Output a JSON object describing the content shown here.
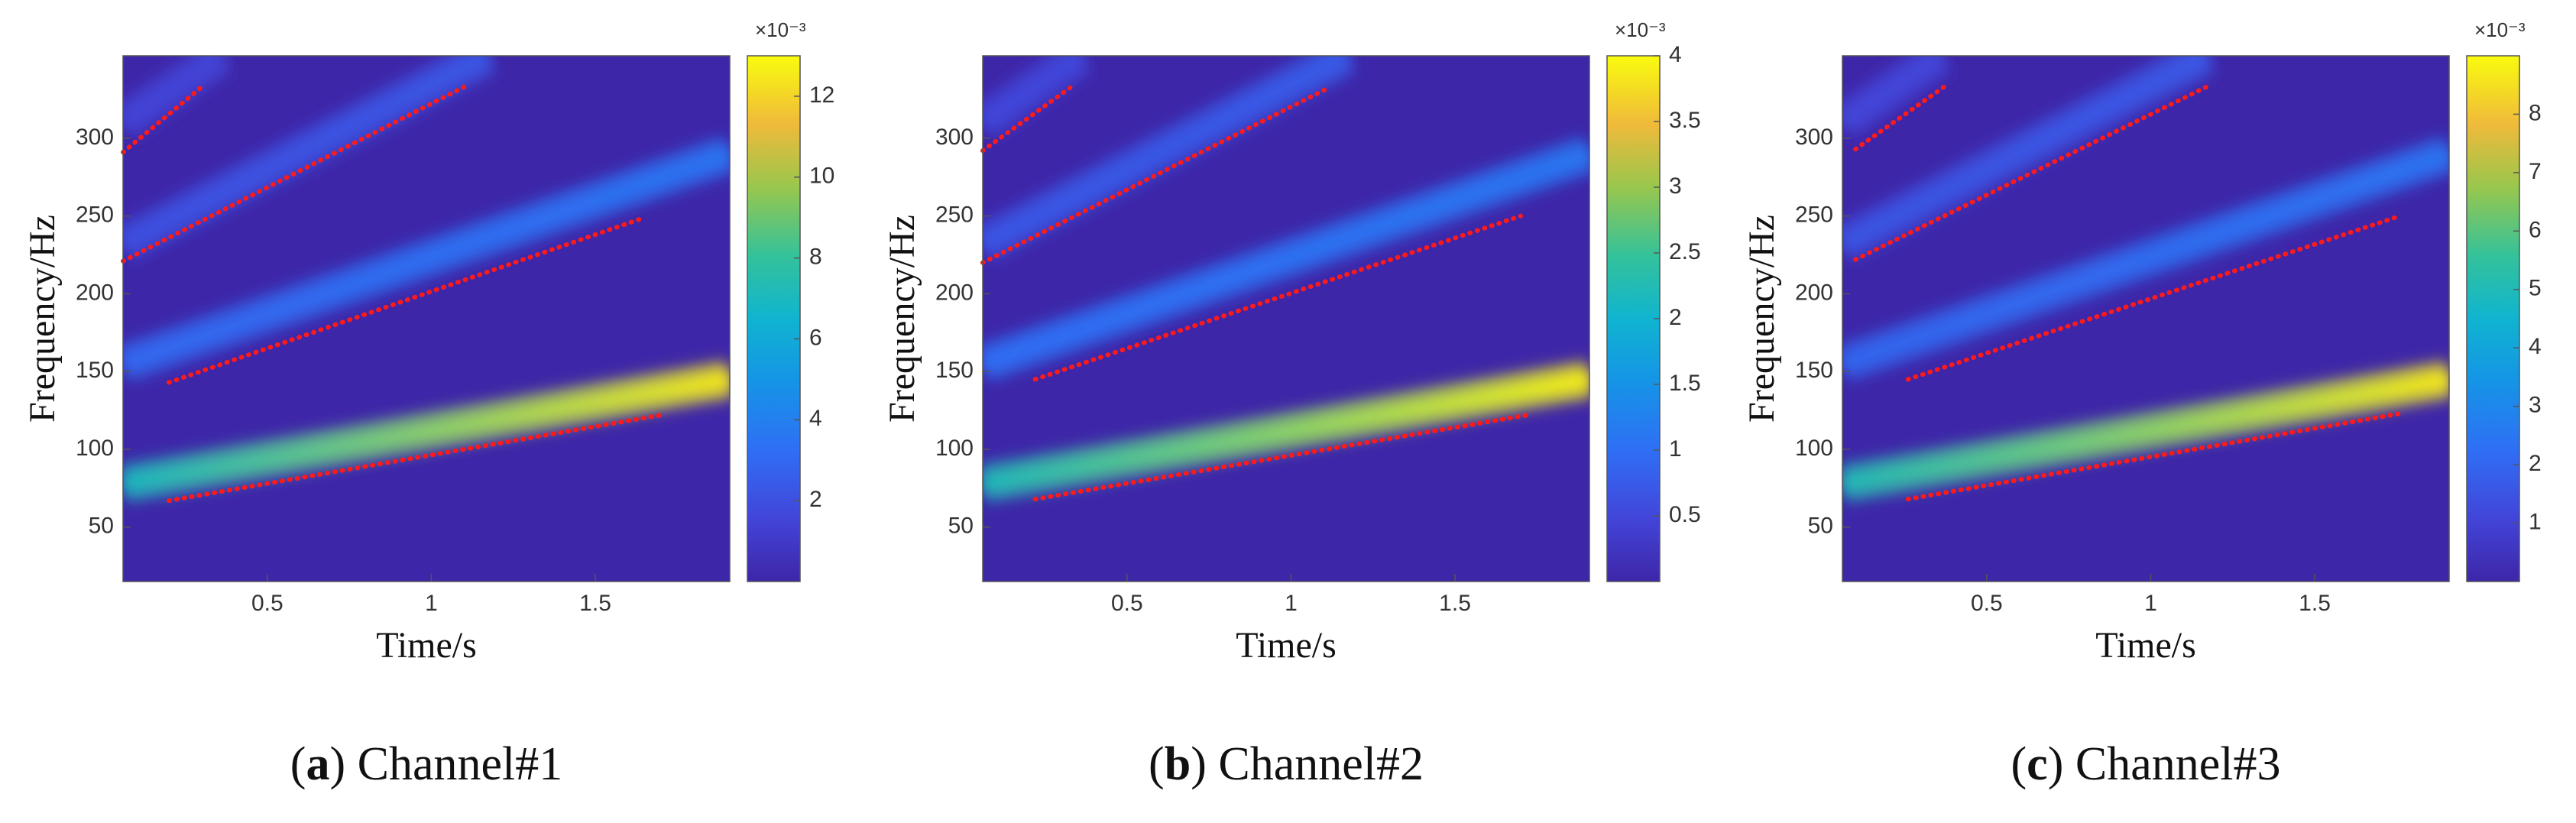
{
  "chart_data": [
    {
      "type": "heatmap",
      "xlabel": "Time/s",
      "ylabel": "Frequency/Hz",
      "caption": [
        "(",
        "a",
        ") Channel#1"
      ],
      "xlim": [
        0.06,
        1.91
      ],
      "ylim": [
        15,
        353
      ],
      "xticks": [
        0.5,
        1,
        1.5
      ],
      "yticks": [
        50,
        100,
        150,
        200,
        250,
        300
      ],
      "clim": [
        0,
        13
      ],
      "cticks": [
        2,
        4,
        6,
        8,
        10,
        12
      ],
      "clabel": "×10⁻³",
      "series": [
        {
          "x": [
            0.06,
            1.91
          ],
          "values": [
            78,
            145
          ],
          "levels": [
            7,
            12.5
          ]
        },
        {
          "x": [
            0.06,
            1.91
          ],
          "values": [
            155,
            290
          ],
          "levels": [
            3,
            3.5
          ]
        },
        {
          "x": [
            0.06,
            1.17
          ],
          "values": [
            232,
            353
          ],
          "levels": [
            2,
            2.3
          ]
        },
        {
          "x": [
            0.06,
            0.36
          ],
          "values": [
            310,
            353
          ],
          "levels": [
            1.5,
            1.5
          ]
        },
        {
          "x": [
            0.2,
            1.7
          ],
          "values": [
            67,
            122
          ],
          "color": "#ff1a1a",
          "style": "dotted"
        },
        {
          "x": [
            0.2,
            1.65
          ],
          "values": [
            143,
            249
          ],
          "color": "#ff1a1a",
          "style": "dotted"
        },
        {
          "x": [
            0.06,
            1.1
          ],
          "values": [
            221,
            333
          ],
          "color": "#ff1a1a",
          "style": "dotted"
        },
        {
          "x": [
            0.06,
            0.3
          ],
          "values": [
            291,
            333
          ],
          "color": "#ff1a1a",
          "style": "dotted"
        }
      ]
    },
    {
      "type": "heatmap",
      "xlabel": "Time/s",
      "ylabel": "Frequency/Hz",
      "caption": [
        "(",
        "b",
        ") Channel#2"
      ],
      "xlim": [
        0.06,
        1.91
      ],
      "ylim": [
        15,
        353
      ],
      "xticks": [
        0.5,
        1,
        1.5
      ],
      "yticks": [
        50,
        100,
        150,
        200,
        250,
        300
      ],
      "clim": [
        0,
        4
      ],
      "cticks": [
        0.5,
        1,
        1.5,
        2,
        2.5,
        3,
        3.5,
        4
      ],
      "clabel": "×10⁻³",
      "series": [
        {
          "x": [
            0.06,
            1.91
          ],
          "values": [
            78,
            145
          ],
          "levels": [
            2.2,
            3.9
          ]
        },
        {
          "x": [
            0.06,
            1.91
          ],
          "values": [
            155,
            290
          ],
          "levels": [
            1,
            1.1
          ]
        },
        {
          "x": [
            0.06,
            1.17
          ],
          "values": [
            232,
            353
          ],
          "levels": [
            0.7,
            0.75
          ]
        },
        {
          "x": [
            0.06,
            0.36
          ],
          "values": [
            310,
            353
          ],
          "levels": [
            0.5,
            0.5
          ]
        },
        {
          "x": [
            0.22,
            1.72
          ],
          "values": [
            68,
            122
          ],
          "color": "#ff1a1a",
          "style": "dotted"
        },
        {
          "x": [
            0.22,
            1.7
          ],
          "values": [
            145,
            250
          ],
          "color": "#ff1a1a",
          "style": "dotted"
        },
        {
          "x": [
            0.06,
            1.12
          ],
          "values": [
            220,
            333
          ],
          "color": "#ff1a1a",
          "style": "dotted"
        },
        {
          "x": [
            0.06,
            0.33
          ],
          "values": [
            292,
            333
          ],
          "color": "#ff1a1a",
          "style": "dotted"
        }
      ]
    },
    {
      "type": "heatmap",
      "xlabel": "Time/s",
      "ylabel": "Frequency/Hz",
      "caption": [
        "(",
        "c",
        ") Channel#3"
      ],
      "xlim": [
        0.06,
        1.91
      ],
      "ylim": [
        15,
        353
      ],
      "xticks": [
        0.5,
        1,
        1.5
      ],
      "yticks": [
        50,
        100,
        150,
        200,
        250,
        300
      ],
      "clim": [
        0,
        9
      ],
      "cticks": [
        1,
        2,
        3,
        4,
        5,
        6,
        7,
        8
      ],
      "clabel": "×10⁻³",
      "series": [
        {
          "x": [
            0.06,
            1.91
          ],
          "values": [
            78,
            145
          ],
          "levels": [
            5,
            8.7
          ]
        },
        {
          "x": [
            0.06,
            1.91
          ],
          "values": [
            155,
            290
          ],
          "levels": [
            2,
            2.4
          ]
        },
        {
          "x": [
            0.06,
            1.17
          ],
          "values": [
            232,
            353
          ],
          "levels": [
            1.5,
            1.6
          ]
        },
        {
          "x": [
            0.06,
            0.36
          ],
          "values": [
            310,
            353
          ],
          "levels": [
            1.1,
            1.1
          ]
        },
        {
          "x": [
            0.26,
            1.76
          ],
          "values": [
            68,
            123
          ],
          "color": "#ff1a1a",
          "style": "dotted"
        },
        {
          "x": [
            0.26,
            1.76
          ],
          "values": [
            145,
            250
          ],
          "color": "#ff1a1a",
          "style": "dotted"
        },
        {
          "x": [
            0.1,
            1.17
          ],
          "values": [
            222,
            333
          ],
          "color": "#ff1a1a",
          "style": "dotted"
        },
        {
          "x": [
            0.1,
            0.37
          ],
          "values": [
            293,
            333
          ],
          "color": "#ff1a1a",
          "style": "dotted"
        }
      ]
    }
  ]
}
